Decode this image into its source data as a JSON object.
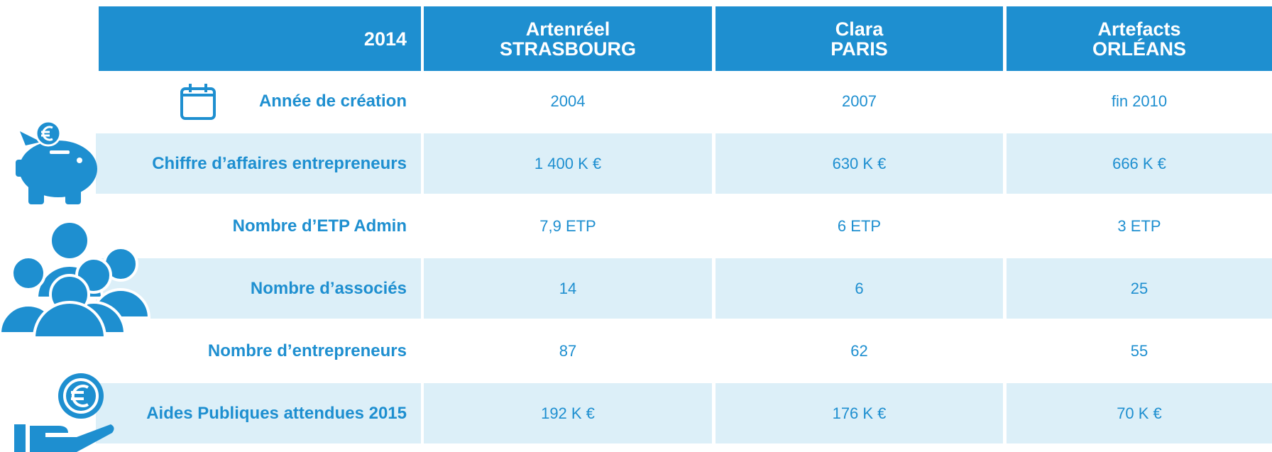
{
  "table": {
    "header": {
      "corner": "2014",
      "columns": [
        {
          "name": "Artenréel",
          "city": "STRASBOURG"
        },
        {
          "name": "Clara",
          "city": "PARIS"
        },
        {
          "name": "Artefacts",
          "city": "ORLÉANS"
        }
      ]
    },
    "rows": [
      {
        "label": "Année de création",
        "values": [
          "2004",
          "2007",
          "fin 2010"
        ]
      },
      {
        "label": "Chiffre d’affaires entrepreneurs",
        "values": [
          "1 400 K €",
          "630 K €",
          "666 K €"
        ]
      },
      {
        "label": "Nombre d’ETP Admin",
        "values": [
          "7,9 ETP",
          "6 ETP",
          "3 ETP"
        ]
      },
      {
        "label": "Nombre d’associés",
        "values": [
          "14",
          "6",
          "25"
        ]
      },
      {
        "label": "Nombre d’entrepreneurs",
        "values": [
          "87",
          "62",
          "55"
        ]
      },
      {
        "label": "Aides Publiques attendues 2015",
        "values": [
          "192 K €",
          "176 K €",
          "70 K €"
        ]
      }
    ]
  }
}
